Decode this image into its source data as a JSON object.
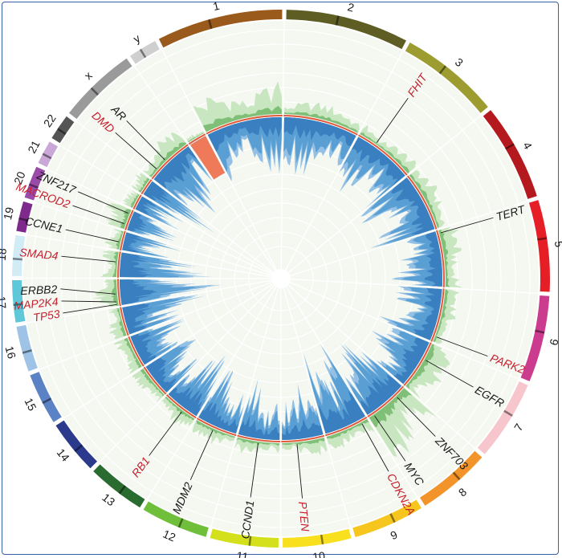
{
  "chromosomes": [
    {
      "label": "1",
      "color": "#9a5a1c",
      "size": 249
    },
    {
      "label": "2",
      "color": "#5d5d24",
      "size": 243
    },
    {
      "label": "3",
      "color": "#9c9c30",
      "size": 198
    },
    {
      "label": "4",
      "color": "#b4191e",
      "size": 191
    },
    {
      "label": "5",
      "color": "#e61e26",
      "size": 181
    },
    {
      "label": "6",
      "color": "#cc3c8e",
      "size": 171
    },
    {
      "label": "7",
      "color": "#f6c6cc",
      "size": 159
    },
    {
      "label": "8",
      "color": "#f2942a",
      "size": 146
    },
    {
      "label": "9",
      "color": "#f6c51e",
      "size": 141
    },
    {
      "label": "10",
      "color": "#f8e01e",
      "size": 135
    },
    {
      "label": "11",
      "color": "#d4e01c",
      "size": 135
    },
    {
      "label": "12",
      "color": "#6fbf3a",
      "size": 133
    },
    {
      "label": "13",
      "color": "#2a6b30",
      "size": 115
    },
    {
      "label": "14",
      "color": "#2b3a8c",
      "size": 107
    },
    {
      "label": "15",
      "color": "#5b82c4",
      "size": 102
    },
    {
      "label": "16",
      "color": "#9ec3e6",
      "size": 90
    },
    {
      "label": "17",
      "color": "#5ec8d8",
      "size": 83
    },
    {
      "label": "18",
      "color": "#d2ecf6",
      "size": 80
    },
    {
      "label": "19",
      "color": "#7d2a8c",
      "size": 59
    },
    {
      "label": "20",
      "color": "#9a4aa8",
      "size": 64
    },
    {
      "label": "21",
      "color": "#c9a8d8",
      "size": 47
    },
    {
      "label": "22",
      "color": "#555555",
      "size": 51
    },
    {
      "label": "x",
      "color": "#9a9a9a",
      "size": 155
    },
    {
      "label": "y",
      "color": "#cfcfcf",
      "size": 57
    }
  ],
  "genes": [
    {
      "name": "FHIT",
      "color": "#c8202e",
      "chrom": "3",
      "pos": 0.3
    },
    {
      "name": "TERT",
      "color": "#1a1a1a",
      "chrom": "5",
      "pos": 0.05
    },
    {
      "name": "PARK2",
      "color": "#c8202e",
      "chrom": "6",
      "pos": 0.9
    },
    {
      "name": "EGFR",
      "color": "#1a1a1a",
      "chrom": "7",
      "pos": 0.35
    },
    {
      "name": "ZNF703",
      "color": "#1a1a1a",
      "chrom": "8",
      "pos": 0.25
    },
    {
      "name": "MYC",
      "color": "#1a1a1a",
      "chrom": "8",
      "pos": 0.88
    },
    {
      "name": "CDKN2A",
      "color": "#c8202e",
      "chrom": "9",
      "pos": 0.15
    },
    {
      "name": "PTEN",
      "color": "#c8202e",
      "chrom": "10",
      "pos": 0.65
    },
    {
      "name": "CCND1",
      "color": "#1a1a1a",
      "chrom": "11",
      "pos": 0.5
    },
    {
      "name": "MDM2",
      "color": "#1a1a1a",
      "chrom": "12",
      "pos": 0.55
    },
    {
      "name": "RB1",
      "color": "#c8202e",
      "chrom": "13",
      "pos": 0.4
    },
    {
      "name": "TP53",
      "color": "#c8202e",
      "chrom": "17",
      "pos": 0.05
    },
    {
      "name": "MAP2K4",
      "color": "#c8202e",
      "chrom": "17",
      "pos": 0.15
    },
    {
      "name": "ERBB2",
      "color": "#1a1a1a",
      "chrom": "17",
      "pos": 0.45
    },
    {
      "name": "SMAD4",
      "color": "#c8202e",
      "chrom": "18",
      "pos": 0.6
    },
    {
      "name": "CCNE1",
      "color": "#1a1a1a",
      "chrom": "19",
      "pos": 0.4
    },
    {
      "name": "ZNF217",
      "color": "#1a1a1a",
      "chrom": "20",
      "pos": 0.8
    },
    {
      "name": "MACROD2",
      "color": "#c8202e",
      "chrom": "20",
      "pos": 0.25
    },
    {
      "name": "DMD",
      "color": "#c8202e",
      "chrom": "x",
      "pos": 0.2
    },
    {
      "name": "AR",
      "color": "#1a1a1a",
      "chrom": "x",
      "pos": 0.45
    }
  ],
  "colors": {
    "background": "#f4f8f1",
    "gain": "#c8e6c0",
    "gain_strong": "#5fae5a",
    "loss_light": "#93c0e4",
    "loss": "#5a9fd4",
    "loss_strong": "#3a7fc0",
    "baseline": "#e2573a"
  }
}
